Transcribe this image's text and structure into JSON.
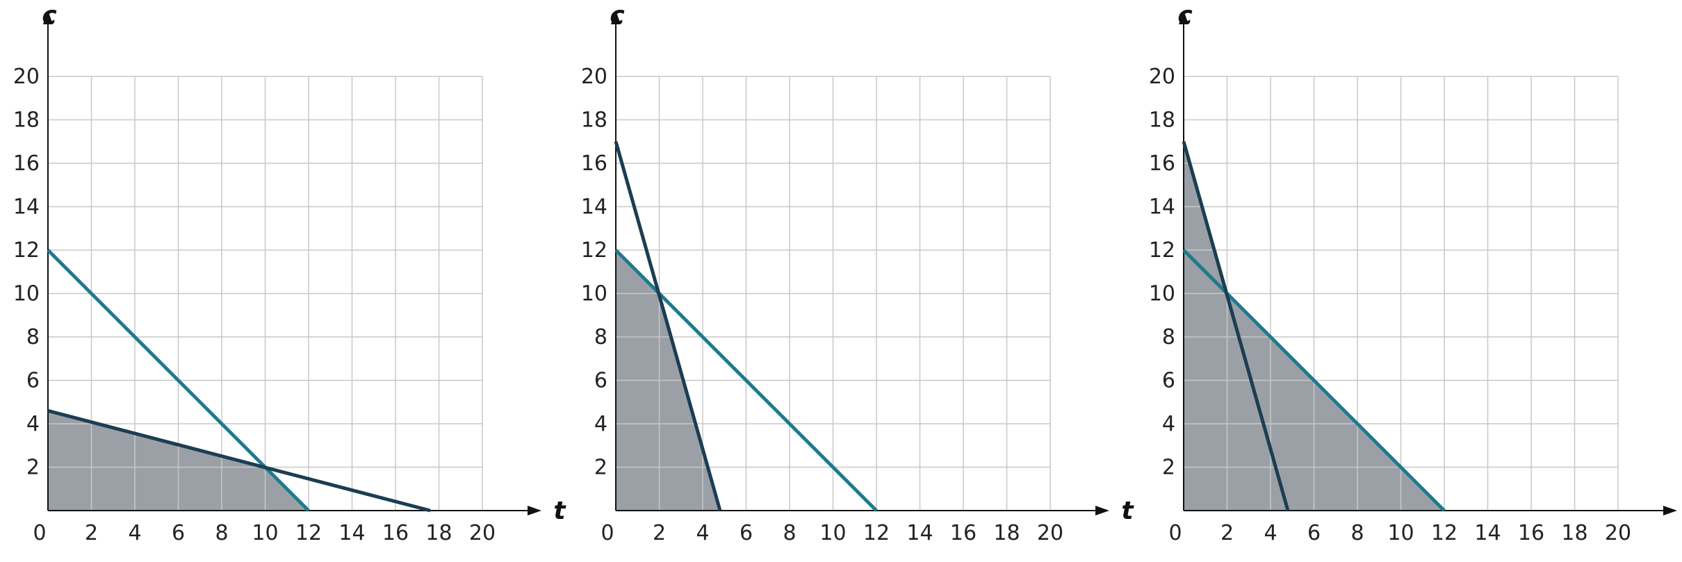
{
  "chart_data": [
    {
      "type": "line",
      "xlabel": "t",
      "ylabel": "c",
      "xlim": [
        0,
        20
      ],
      "ylim": [
        0,
        20
      ],
      "grid": true,
      "x_ticks": [
        "0",
        "2",
        "4",
        "6",
        "8",
        "10",
        "12",
        "14",
        "16",
        "18",
        "20"
      ],
      "y_ticks": [
        "2",
        "4",
        "6",
        "8",
        "10",
        "12",
        "14",
        "16",
        "18",
        "20"
      ],
      "series": [
        {
          "color": "#1f7a8c",
          "x": [
            0,
            12
          ],
          "y": [
            12,
            0
          ]
        },
        {
          "color": "#1c3d52",
          "x": [
            0,
            17.6
          ],
          "y": [
            4.6,
            0
          ]
        }
      ],
      "shaded_region": {
        "color": "#9aa0a6",
        "x": [
          0,
          0,
          10,
          12
        ],
        "y": [
          0,
          4.6,
          2,
          0
        ]
      }
    },
    {
      "type": "line",
      "xlabel": "t",
      "ylabel": "c",
      "xlim": [
        0,
        20
      ],
      "ylim": [
        0,
        20
      ],
      "grid": true,
      "x_ticks": [
        "0",
        "2",
        "4",
        "6",
        "8",
        "10",
        "12",
        "14",
        "16",
        "18",
        "20"
      ],
      "y_ticks": [
        "2",
        "4",
        "6",
        "8",
        "10",
        "12",
        "14",
        "16",
        "18",
        "20"
      ],
      "series": [
        {
          "color": "#1f7a8c",
          "x": [
            0,
            12
          ],
          "y": [
            12,
            0
          ]
        },
        {
          "color": "#1c3d52",
          "x": [
            0,
            4.8
          ],
          "y": [
            17,
            0
          ]
        }
      ],
      "shaded_region": {
        "color": "#9aa0a6",
        "x": [
          0,
          0,
          2,
          4.8
        ],
        "y": [
          0,
          12,
          10,
          0
        ]
      }
    },
    {
      "type": "line",
      "xlabel": "t",
      "ylabel": "c",
      "xlim": [
        0,
        20
      ],
      "ylim": [
        0,
        20
      ],
      "grid": true,
      "x_ticks": [
        "0",
        "2",
        "4",
        "6",
        "8",
        "10",
        "12",
        "14",
        "16",
        "18",
        "20"
      ],
      "y_ticks": [
        "2",
        "4",
        "6",
        "8",
        "10",
        "12",
        "14",
        "16",
        "18",
        "20"
      ],
      "series": [
        {
          "color": "#1f7a8c",
          "x": [
            0,
            12
          ],
          "y": [
            12,
            0
          ]
        },
        {
          "color": "#1c3d52",
          "x": [
            0,
            4.8
          ],
          "y": [
            17,
            0
          ]
        }
      ],
      "shaded_region": {
        "color": "#9aa0a6",
        "x": [
          0,
          0,
          2,
          12
        ],
        "y": [
          0,
          17,
          10,
          0
        ]
      }
    }
  ]
}
